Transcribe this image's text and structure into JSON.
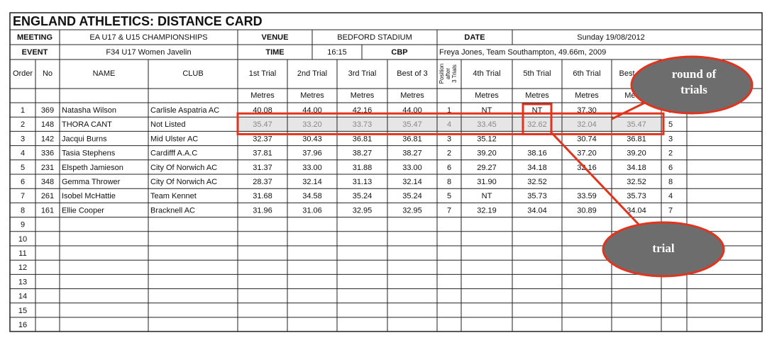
{
  "title": "ENGLAND ATHLETICS: DISTANCE CARD",
  "meta": [
    [
      "MEETING",
      "EA U17 & U15 CHAMPIONSHIPS",
      "VENUE",
      "BEDFORD STADIUM",
      "DATE",
      "Sunday 19/08/2012"
    ],
    [
      "EVENT",
      "F34 U17 Women Javelin",
      "TIME",
      "16:15",
      "CBP",
      "Freya Jones, Team Southampton, 49.66m, 2009"
    ]
  ],
  "header": {
    "columns": [
      "Order",
      "No",
      "NAME",
      "CLUB",
      "1st Trial",
      "2nd Trial",
      "3rd Trial",
      "Best of 3"
    ],
    "position": [
      "Position",
      "after",
      "3 Trials"
    ],
    "columns_after": [
      "4th Trial",
      "5th Trial",
      "6th Trial",
      "Best of All"
    ],
    "units": [
      "Metres",
      "Metres",
      "Metres",
      "Metres",
      "Metres",
      "Metres",
      "Metres",
      "Metres"
    ]
  },
  "rows": [
    [
      "1",
      "369",
      "Natasha Wilson",
      "Carlisle Aspatria AC",
      "40.08",
      "44.00",
      "42.16",
      "44.00",
      "1",
      "NT",
      "NT",
      "37.30",
      null,
      "1"
    ],
    [
      "2",
      "148",
      "THORA CANT",
      "Not Listed",
      "35.47",
      "33.20",
      "33.73",
      "35.47",
      "4",
      "33.45",
      "32.62",
      "32.04",
      "35.47",
      "5"
    ],
    [
      "3",
      "142",
      "Jacqui Burns",
      "Mid Ulster AC",
      "32.37",
      "30.43",
      "36.81",
      "36.81",
      "3",
      "35.12",
      null,
      "30.74",
      "36.81",
      "3"
    ],
    [
      "4",
      "336",
      "Tasia Stephens",
      "Cardifff A.A.C",
      "37.81",
      "37.96",
      "38.27",
      "38.27",
      "2",
      "39.20",
      "38.16",
      "37.20",
      "39.20",
      "2"
    ],
    [
      "5",
      "231",
      "Elspeth Jamieson",
      "City Of Norwich AC",
      "31.37",
      "33.00",
      "31.88",
      "33.00",
      "6",
      "29.27",
      "34.18",
      "32.16",
      "34.18",
      "6"
    ],
    [
      "6",
      "348",
      "Gemma Thrower",
      "City Of Norwich AC",
      "28.37",
      "32.14",
      "31.13",
      "32.14",
      "8",
      "31.90",
      "32.52",
      null,
      "32.52",
      "8"
    ],
    [
      "7",
      "261",
      "Isobel McHattie",
      "Team Kennet",
      "31.68",
      "34.58",
      "35.24",
      "35.24",
      "5",
      "NT",
      "35.73",
      "33.59",
      "35.73",
      "4"
    ],
    [
      "8",
      "161",
      "Ellie Cooper",
      "Bracknell AC",
      "31.96",
      "31.06",
      "32.95",
      "32.95",
      "7",
      "32.19",
      "34.04",
      "30.89",
      "34.04",
      "7"
    ],
    [
      "9"
    ],
    [
      "10"
    ],
    [
      "11"
    ],
    [
      "12"
    ],
    [
      "13"
    ],
    [
      "14"
    ],
    [
      "15"
    ],
    [
      "16"
    ]
  ],
  "annotations": {
    "round_of_trials": [
      "round of",
      "trials"
    ],
    "trial": "trial"
  }
}
